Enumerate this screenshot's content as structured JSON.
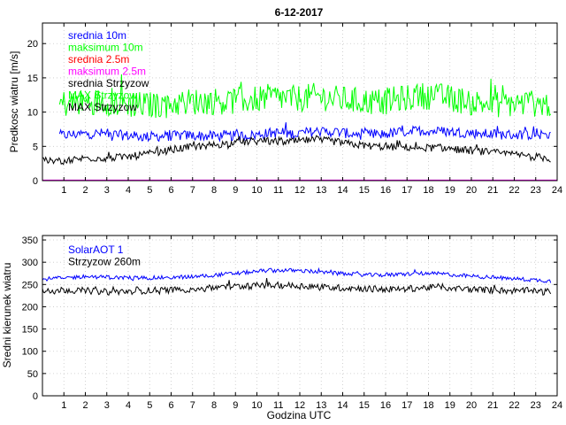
{
  "chart_data": [
    {
      "type": "line",
      "title": "6-12-2017",
      "xlabel": "",
      "ylabel": "Predkosc wiatru [m/s]",
      "xlim": [
        0,
        24
      ],
      "ylim": [
        0,
        23
      ],
      "x_ticks": [
        "1",
        "2",
        "3",
        "4",
        "5",
        "6",
        "7",
        "8",
        "9",
        "10",
        "11",
        "12",
        "13",
        "14",
        "15",
        "16",
        "17",
        "18",
        "19",
        "20",
        "21",
        "22",
        "23",
        "24"
      ],
      "y_ticks": [
        "0",
        "5",
        "10",
        "15",
        "20"
      ],
      "grid": true,
      "legend": [
        {
          "label": "srednia 10m",
          "color": "#0000ff"
        },
        {
          "label": "maksimum 10m",
          "color": "#00ff00"
        },
        {
          "label": "srednia 2.5m",
          "color": "#ff0000"
        },
        {
          "label": "maksimum 2.5m",
          "color": "#ff00ff"
        },
        {
          "label": "srednia Strzyzow",
          "color": "#000000"
        },
        {
          "label": "MAX Strzyzow",
          "color": "#00ff00"
        },
        {
          "label": "MAX Strzyzow",
          "color": "#000000"
        }
      ],
      "series": [
        {
          "name": "srednia 10m",
          "color": "#0000ff",
          "x_start": 0.8,
          "x_end": 23.7,
          "values": [
            6.6,
            6.8,
            6.9,
            6.6,
            6.4,
            6.5,
            6.6,
            6.5,
            6.5,
            6.6,
            7.0,
            6.8,
            7.2,
            7.1,
            6.7,
            6.7,
            7.1,
            7.3,
            7.2,
            7.0,
            6.8,
            6.7,
            6.7,
            6.8
          ]
        },
        {
          "name": "maksimum 10m",
          "color": "#00ff00",
          "x_start": 0.8,
          "x_end": 23.7,
          "values": [
            11.2,
            11.4,
            11.6,
            11.2,
            11.0,
            11.1,
            11.5,
            11.6,
            11.6,
            11.8,
            12.2,
            11.9,
            12.3,
            11.9,
            11.6,
            11.5,
            11.9,
            12.4,
            12.2,
            11.6,
            11.2,
            11.2,
            11.3,
            11.1
          ]
        },
        {
          "name": "srednia 2.5m",
          "color": "#ff0000",
          "x_start": 0.0,
          "x_end": 24.0,
          "values": [
            0.05,
            0.05
          ]
        },
        {
          "name": "maksimum 2.5m",
          "color": "#ff00ff",
          "x_start": 0.0,
          "x_end": 24.0,
          "values": [
            0.08,
            0.08
          ]
        },
        {
          "name": "srednia Strzyzow",
          "color": "#000000",
          "x_start": 0.0,
          "x_end": 23.7,
          "values": [
            2.8,
            2.9,
            3.3,
            3.3,
            3.5,
            4.0,
            4.6,
            5.0,
            5.3,
            5.6,
            5.8,
            5.6,
            5.9,
            5.8,
            5.3,
            5.0,
            4.9,
            4.8,
            4.8,
            4.5,
            4.2,
            3.9,
            3.6,
            3.2
          ]
        }
      ]
    },
    {
      "type": "line",
      "title": "",
      "xlabel": "Godzina UTC",
      "ylabel": "Sredni kierunek wiatru",
      "xlim": [
        0,
        24
      ],
      "ylim": [
        0,
        360
      ],
      "x_ticks": [
        "1",
        "2",
        "3",
        "4",
        "5",
        "6",
        "7",
        "8",
        "9",
        "10",
        "11",
        "12",
        "13",
        "14",
        "15",
        "16",
        "17",
        "18",
        "19",
        "20",
        "21",
        "22",
        "23",
        "24"
      ],
      "y_ticks": [
        "0",
        "50",
        "100",
        "150",
        "200",
        "250",
        "300",
        "350"
      ],
      "grid": true,
      "legend": [
        {
          "label": "SolarAOT 1",
          "color": "#0000ff"
        },
        {
          "label": "Strzyzow 260m",
          "color": "#000000"
        }
      ],
      "series": [
        {
          "name": "SolarAOT 1",
          "color": "#0000ff",
          "x_start": 0.0,
          "x_end": 23.7,
          "values": [
            262,
            265,
            268,
            266,
            265,
            265,
            266,
            268,
            272,
            276,
            281,
            282,
            280,
            276,
            273,
            271,
            272,
            275,
            274,
            270,
            267,
            264,
            261,
            258
          ]
        },
        {
          "name": "Strzyzow 260m",
          "color": "#000000",
          "x_start": 0.0,
          "x_end": 23.7,
          "values": [
            236,
            238,
            236,
            233,
            235,
            237,
            238,
            240,
            244,
            246,
            248,
            248,
            246,
            243,
            242,
            240,
            239,
            242,
            244,
            240,
            238,
            236,
            236,
            232
          ]
        }
      ]
    }
  ]
}
